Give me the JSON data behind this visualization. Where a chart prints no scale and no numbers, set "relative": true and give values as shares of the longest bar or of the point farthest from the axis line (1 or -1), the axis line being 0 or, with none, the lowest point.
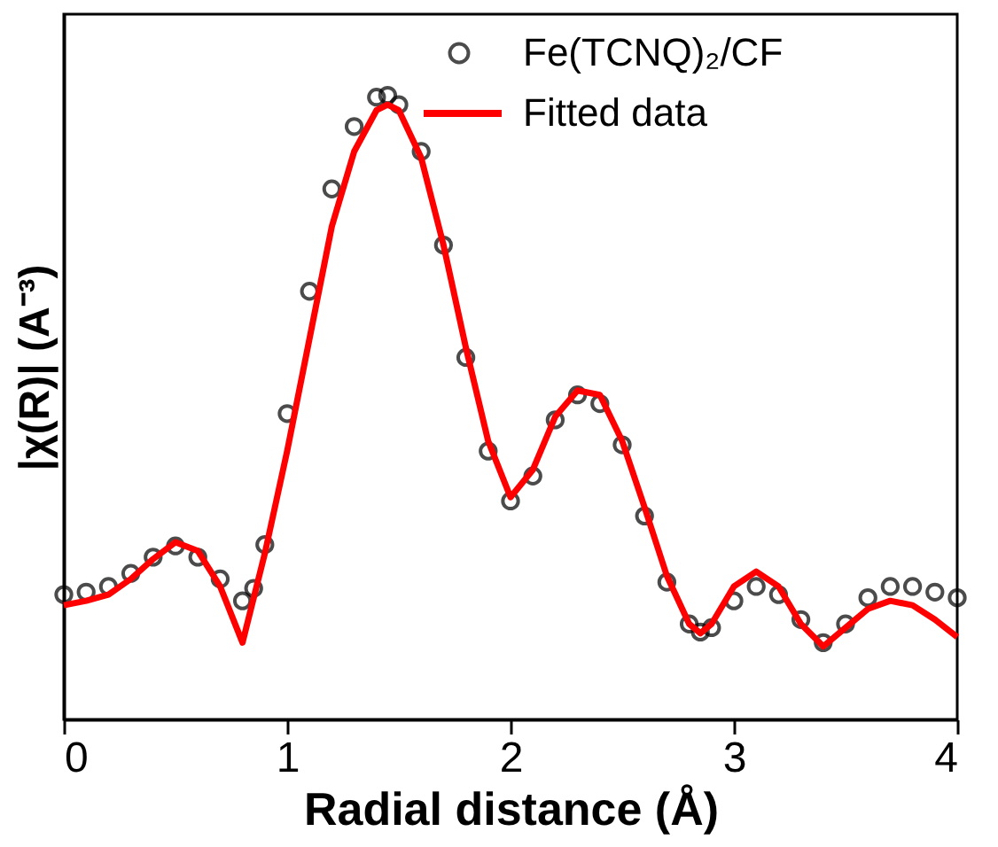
{
  "chart_data": {
    "type": "line",
    "xlabel": "Radial distance (Å)",
    "ylabel": "|χ(R)| (A⁻³)",
    "relative": true,
    "xlim": [
      0,
      4
    ],
    "xticks": [
      0,
      1,
      2,
      3,
      4
    ],
    "legend": "top right",
    "grid": false,
    "series": [
      {
        "name": "Fe(TCNQ)₂/CF",
        "type": "scatter",
        "marker": "circle",
        "color": "#000000",
        "x": [
          0,
          0.1,
          0.2,
          0.3,
          0.4,
          0.5,
          0.6,
          0.7,
          0.8,
          0.85,
          0.9,
          1.0,
          1.1,
          1.2,
          1.3,
          1.4,
          1.45,
          1.5,
          1.6,
          1.7,
          1.8,
          1.9,
          2.0,
          2.1,
          2.2,
          2.3,
          2.4,
          2.5,
          2.6,
          2.7,
          2.8,
          2.85,
          2.9,
          3.0,
          3.1,
          3.2,
          3.3,
          3.4,
          3.5,
          3.6,
          3.7,
          3.8,
          3.9,
          4.0
        ],
        "values": [
          0.2,
          0.204,
          0.213,
          0.234,
          0.26,
          0.278,
          0.26,
          0.225,
          0.19,
          0.21,
          0.28,
          0.49,
          0.686,
          0.85,
          0.95,
          0.997,
          1.0,
          0.985,
          0.91,
          0.76,
          0.58,
          0.43,
          0.35,
          0.39,
          0.48,
          0.52,
          0.506,
          0.44,
          0.326,
          0.22,
          0.153,
          0.14,
          0.147,
          0.19,
          0.213,
          0.2,
          0.16,
          0.123,
          0.153,
          0.195,
          0.213,
          0.213,
          0.204,
          0.195
        ]
      },
      {
        "name": "Fitted data",
        "line_style": "solid",
        "color": "#ff0000",
        "x": [
          0,
          0.1,
          0.2,
          0.3,
          0.4,
          0.5,
          0.6,
          0.7,
          0.8,
          0.9,
          1.0,
          1.1,
          1.2,
          1.3,
          1.4,
          1.45,
          1.5,
          1.6,
          1.7,
          1.8,
          1.9,
          2.0,
          2.1,
          2.2,
          2.3,
          2.4,
          2.5,
          2.6,
          2.7,
          2.8,
          2.85,
          2.9,
          3.0,
          3.1,
          3.2,
          3.3,
          3.4,
          3.5,
          3.6,
          3.7,
          3.8,
          3.9,
          4.0
        ],
        "values": [
          0.183,
          0.19,
          0.2,
          0.225,
          0.257,
          0.284,
          0.27,
          0.213,
          0.123,
          0.266,
          0.43,
          0.61,
          0.79,
          0.91,
          0.976,
          0.985,
          0.976,
          0.9,
          0.76,
          0.596,
          0.446,
          0.356,
          0.4,
          0.485,
          0.527,
          0.52,
          0.446,
          0.34,
          0.23,
          0.153,
          0.138,
          0.153,
          0.213,
          0.237,
          0.213,
          0.153,
          0.117,
          0.147,
          0.177,
          0.19,
          0.183,
          0.16,
          0.132
        ]
      }
    ]
  }
}
